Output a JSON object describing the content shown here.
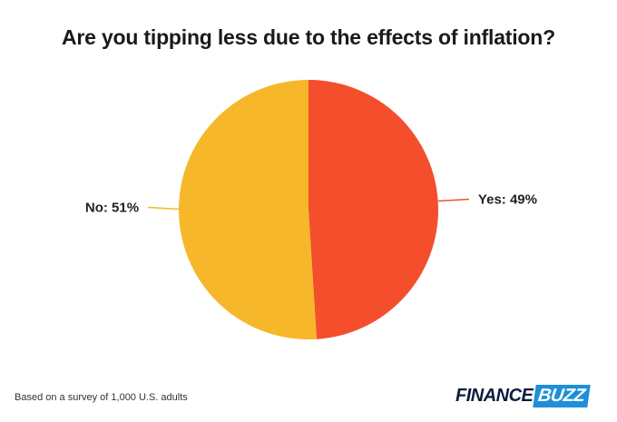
{
  "chart_data": {
    "type": "pie",
    "title": "Are you tipping less due to the effects of inflation?",
    "slices": [
      {
        "label": "Yes",
        "value": 49,
        "display": "Yes: 49%",
        "color": "#f44e2c"
      },
      {
        "label": "No",
        "value": 51,
        "display": "No: 51%",
        "color": "#f6b72a"
      }
    ]
  },
  "footnote": "Based on a survey of 1,000 U.S. adults",
  "logo": {
    "word1": "FINANCE",
    "word2": "BUZZ"
  }
}
